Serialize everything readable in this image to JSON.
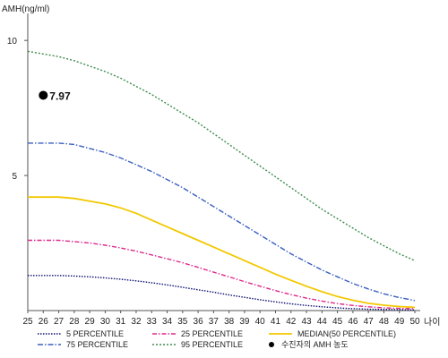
{
  "chart_data": {
    "type": "line",
    "ylabel": "AMH(ng/ml)",
    "xlabel": "나이",
    "xlim": [
      25,
      50
    ],
    "ylim": [
      0,
      11
    ],
    "yticks": [
      5,
      10
    ],
    "x": [
      25,
      26,
      27,
      28,
      29,
      30,
      31,
      32,
      33,
      34,
      35,
      36,
      37,
      38,
      39,
      40,
      41,
      42,
      43,
      44,
      45,
      46,
      47,
      48,
      49,
      50
    ],
    "series": [
      {
        "name": "95 PERCENTILE",
        "color": "#3d8b4f",
        "dash": "2,2",
        "values": [
          9.6,
          9.5,
          9.4,
          9.25,
          9.05,
          8.85,
          8.6,
          8.3,
          8.0,
          7.65,
          7.3,
          6.95,
          6.55,
          6.15,
          5.75,
          5.35,
          4.95,
          4.55,
          4.15,
          3.75,
          3.4,
          3.05,
          2.7,
          2.4,
          2.1,
          1.85
        ]
      },
      {
        "name": "75 PERCENTILE",
        "color": "#3a5fc0",
        "dash": "6,2,1.5,2",
        "values": [
          6.2,
          6.2,
          6.2,
          6.15,
          6.0,
          5.85,
          5.65,
          5.4,
          5.15,
          4.85,
          4.55,
          4.2,
          3.85,
          3.5,
          3.15,
          2.8,
          2.45,
          2.1,
          1.8,
          1.5,
          1.25,
          1.0,
          0.8,
          0.62,
          0.48,
          0.37
        ]
      },
      {
        "name": "MEDIAN(50 PERCENTILE)",
        "color": "#f2c800",
        "dash": "",
        "values": [
          4.2,
          4.2,
          4.2,
          4.15,
          4.05,
          3.95,
          3.8,
          3.6,
          3.35,
          3.1,
          2.85,
          2.6,
          2.35,
          2.1,
          1.85,
          1.6,
          1.35,
          1.12,
          0.9,
          0.7,
          0.52,
          0.38,
          0.27,
          0.2,
          0.15,
          0.12
        ]
      },
      {
        "name": "25 PERCENTILE",
        "color": "#e0278c",
        "dash": "5,2,1.5,2",
        "values": [
          2.6,
          2.6,
          2.6,
          2.55,
          2.5,
          2.42,
          2.32,
          2.2,
          2.06,
          1.92,
          1.77,
          1.6,
          1.42,
          1.25,
          1.07,
          0.9,
          0.74,
          0.59,
          0.46,
          0.35,
          0.26,
          0.19,
          0.14,
          0.1,
          0.08,
          0.07
        ]
      },
      {
        "name": "5 PERCENTILE",
        "color": "#0a1070",
        "dash": "1.5,1.5",
        "values": [
          1.3,
          1.3,
          1.3,
          1.28,
          1.25,
          1.21,
          1.16,
          1.1,
          1.03,
          0.95,
          0.86,
          0.77,
          0.68,
          0.58,
          0.49,
          0.4,
          0.32,
          0.25,
          0.19,
          0.14,
          0.1,
          0.07,
          0.05,
          0.04,
          0.03,
          0.02
        ]
      }
    ],
    "points": [
      {
        "name": "수진자의 AMH 농도",
        "x": 26,
        "y": 7.97,
        "label": "7.97",
        "color": "#000000"
      }
    ],
    "legend": {
      "position": "bottom",
      "items": [
        {
          "label": "5 PERCENTILE",
          "color": "#0a1070",
          "dash": "1.5,1.5"
        },
        {
          "label": "25 PERCENTILE",
          "color": "#e0278c",
          "dash": "5,2,1.5,2"
        },
        {
          "label": "MEDIAN(50 PERCENTILE)",
          "color": "#f2c800",
          "dash": ""
        },
        {
          "label": "75 PERCENTILE",
          "color": "#3a5fc0",
          "dash": "6,2,1.5,2"
        },
        {
          "label": "95 PERCENTILE",
          "color": "#3d8b4f",
          "dash": "2,2"
        },
        {
          "label": "수진자의 AMH 농도",
          "marker": "dot",
          "color": "#000000"
        }
      ]
    },
    "grid": false
  }
}
